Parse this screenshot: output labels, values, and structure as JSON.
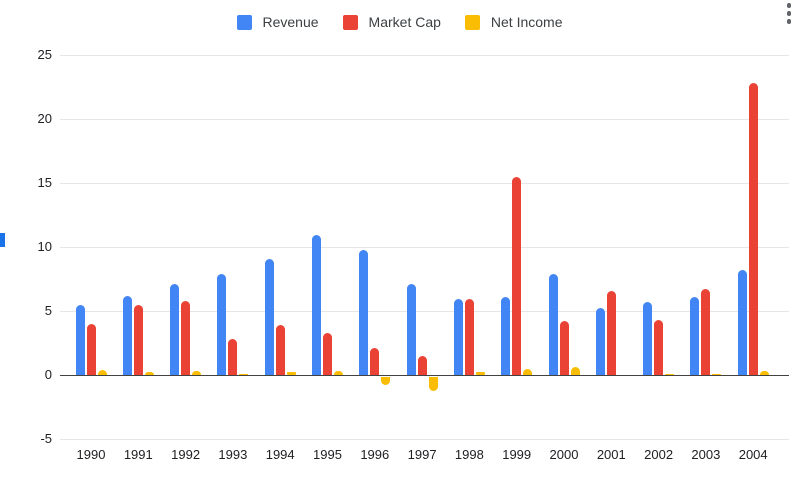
{
  "chart_data": {
    "type": "bar",
    "title": "",
    "xlabel": "",
    "ylabel": "",
    "categories": [
      "1990",
      "1991",
      "1992",
      "1993",
      "1994",
      "1995",
      "1996",
      "1997",
      "1998",
      "1999",
      "2000",
      "2001",
      "2002",
      "2003",
      "2004"
    ],
    "series": [
      {
        "name": "Revenue",
        "color": "#4285F4",
        "values": [
          5.5,
          6.2,
          7.1,
          7.9,
          9.1,
          10.9,
          9.8,
          7.1,
          5.9,
          6.1,
          7.9,
          5.2,
          5.7,
          6.1,
          8.2
        ]
      },
      {
        "name": "Market Cap",
        "color": "#EA4335",
        "values": [
          4.0,
          5.5,
          5.8,
          2.8,
          3.9,
          3.3,
          2.1,
          1.5,
          5.9,
          15.5,
          4.2,
          6.6,
          4.3,
          6.7,
          22.8
        ]
      },
      {
        "name": "Net Income",
        "color": "#FBBC04",
        "values": [
          0.4,
          0.25,
          0.35,
          0.1,
          0.2,
          0.3,
          -0.7,
          -1.1,
          0.2,
          0.5,
          0.65,
          0.0,
          0.05,
          0.1,
          0.3
        ]
      }
    ],
    "yticks": [
      25,
      20,
      15,
      10,
      5,
      0,
      -5
    ],
    "ylim": [
      -5,
      25
    ],
    "grid": true,
    "legend_position": "top"
  },
  "menu": {
    "more_options_tooltip": "More options"
  },
  "colors": {
    "gridline": "#e6e6e6",
    "baseline": "#424242",
    "tick_text": "#202124",
    "legend_text": "#3c4043",
    "kebab_dots": "#5f6368",
    "edge_fragment": "#1a73e8"
  }
}
